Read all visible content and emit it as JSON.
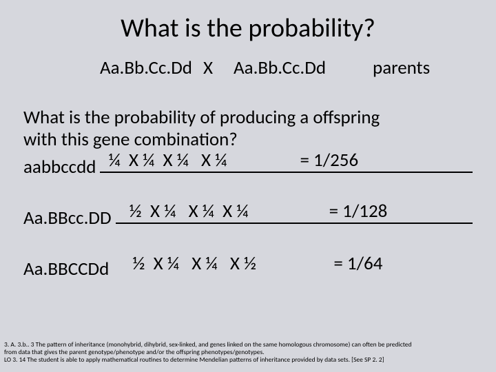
{
  "title": "What is the probability?",
  "cross": {
    "p1": "Aa.Bb.Cc.Dd",
    "x": "X",
    "p2": "Aa.Bb.Cc.Dd",
    "label": "parents"
  },
  "question": {
    "line1": "What is the probability of producing a offspring",
    "line2": "with this gene combination?"
  },
  "rows": [
    {
      "label": "aabbccdd",
      "expr": " ¼  X ¼  X ¼   X ¼",
      "result": "= 1/256"
    },
    {
      "label": "Aa.BBcc.DD",
      "expr": "½  X ¼   X ¼  X ¼",
      "result": "= 1/128"
    },
    {
      "label": "Aa.BBCCDd",
      "expr": "½  X ¼   X ¼   X ½",
      "result": "= 1/64"
    }
  ],
  "footnotes": {
    "f1": "3. A. 3.b.. 3 The pattern of inheritance (monohybrid, dihybrid, sex-linked, and genes linked on the same  homologous chromosome) can often be predicted",
    "f2": "from data that gives the parent genotype/phenotype and/or the offspring phenotypes/genotypes.",
    "f3": "LO 3. 14 The student is able to apply mathematical routines to determine Mendelian patterns of inheritance provided by data sets. [See SP 2. 2]"
  }
}
